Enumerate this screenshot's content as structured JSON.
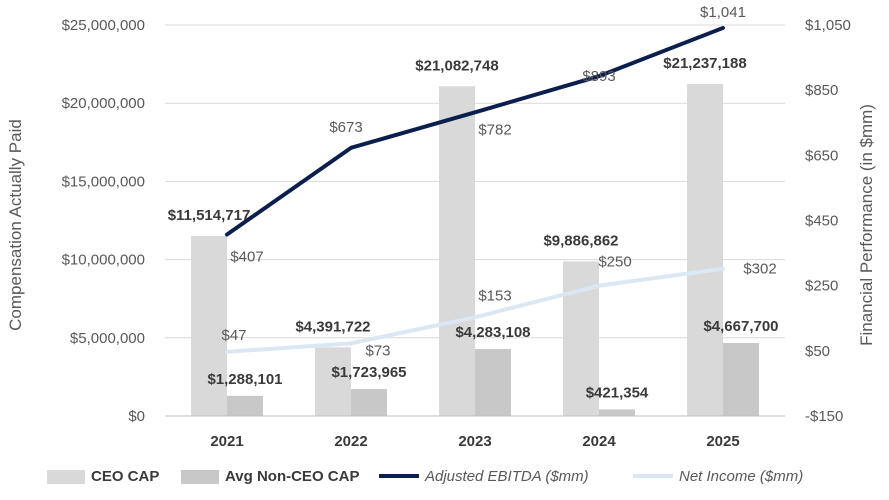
{
  "chart_data": {
    "type": "bar",
    "categories": [
      "2021",
      "2022",
      "2023",
      "2024",
      "2025"
    ],
    "series": [
      {
        "name": "CEO CAP",
        "kind": "bar",
        "axis": "left",
        "color": "#d9d9d9",
        "values": [
          11514717,
          4391722,
          21082748,
          9886862,
          21237188
        ],
        "labels": [
          "$11,514,717",
          "$4,391,722",
          "$21,082,748",
          "$9,886,862",
          "$21,237,188"
        ]
      },
      {
        "name": "Avg Non-CEO CAP",
        "kind": "bar",
        "axis": "left",
        "color": "#c8c8c8",
        "values": [
          1288101,
          1723965,
          4283108,
          421354,
          4667700
        ],
        "labels": [
          "$1,288,101",
          "$1,723,965",
          "$4,283,108",
          "$421,354",
          "$4,667,700"
        ]
      },
      {
        "name": "Adjusted EBITDA ($mm)",
        "kind": "line",
        "axis": "right",
        "color": "#0b1f4f",
        "values": [
          407,
          673,
          782,
          893,
          1041
        ],
        "labels": [
          "$407",
          "$673",
          "$782",
          "$893",
          "$1,041"
        ]
      },
      {
        "name": "Net Income ($mm)",
        "kind": "line",
        "axis": "right",
        "color": "#dce7f4",
        "values": [
          47,
          73,
          153,
          250,
          302
        ],
        "labels": [
          "$47",
          "$73",
          "$153",
          "$250",
          "$302"
        ]
      }
    ],
    "left_axis": {
      "title": "Compensation Actually Paid",
      "min": 0,
      "max": 25000000,
      "ticks": [
        0,
        5000000,
        10000000,
        15000000,
        20000000,
        25000000
      ],
      "tick_labels": [
        "$0",
        "$5,000,000",
        "$10,000,000",
        "$15,000,000",
        "$20,000,000",
        "$25,000,000"
      ]
    },
    "right_axis": {
      "title": "Financial Performance (in $mm)",
      "min": -150,
      "max": 1050,
      "ticks": [
        -150,
        50,
        250,
        450,
        650,
        850,
        1050
      ],
      "tick_labels": [
        "-$150",
        "$50",
        "$250",
        "$450",
        "$650",
        "$850",
        "$1,050"
      ]
    },
    "gridlines": true,
    "legend_position": "bottom"
  }
}
